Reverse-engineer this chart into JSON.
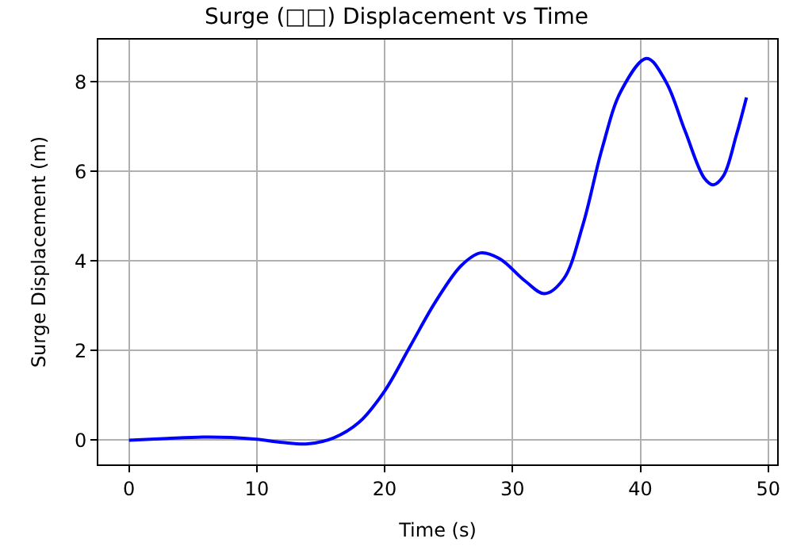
{
  "chart_data": {
    "type": "line",
    "title": "Surge (□□) Displacement vs Time",
    "xlabel": "Time (s)",
    "ylabel": "Surge Displacement (m)",
    "x": [
      0,
      3,
      6,
      8,
      10,
      12,
      14,
      16,
      18,
      20,
      22,
      24,
      26,
      27.5,
      29,
      31,
      32.5,
      34,
      35.5,
      37,
      38.5,
      40.5,
      42,
      43.5,
      45,
      45.7,
      46.5,
      47.5,
      48.3
    ],
    "series": [
      {
        "color": "#0000ff",
        "values": [
          0,
          0.04,
          0.07,
          0.06,
          0.02,
          -0.05,
          -0.08,
          0.05,
          0.4,
          1.1,
          2.1,
          3.1,
          3.9,
          4.18,
          4.05,
          3.55,
          3.27,
          3.6,
          4.8,
          6.5,
          7.8,
          8.52,
          8.0,
          6.9,
          5.85,
          5.7,
          5.9,
          6.8,
          7.65
        ]
      }
    ],
    "xlim": [
      -2.4,
      50.7
    ],
    "ylim": [
      -0.54,
      8.94
    ],
    "xticks": [
      0,
      10,
      20,
      30,
      40,
      50
    ],
    "yticks": [
      0,
      2,
      4,
      6,
      8
    ],
    "grid": true,
    "marker": "none",
    "line_style": "solid"
  }
}
